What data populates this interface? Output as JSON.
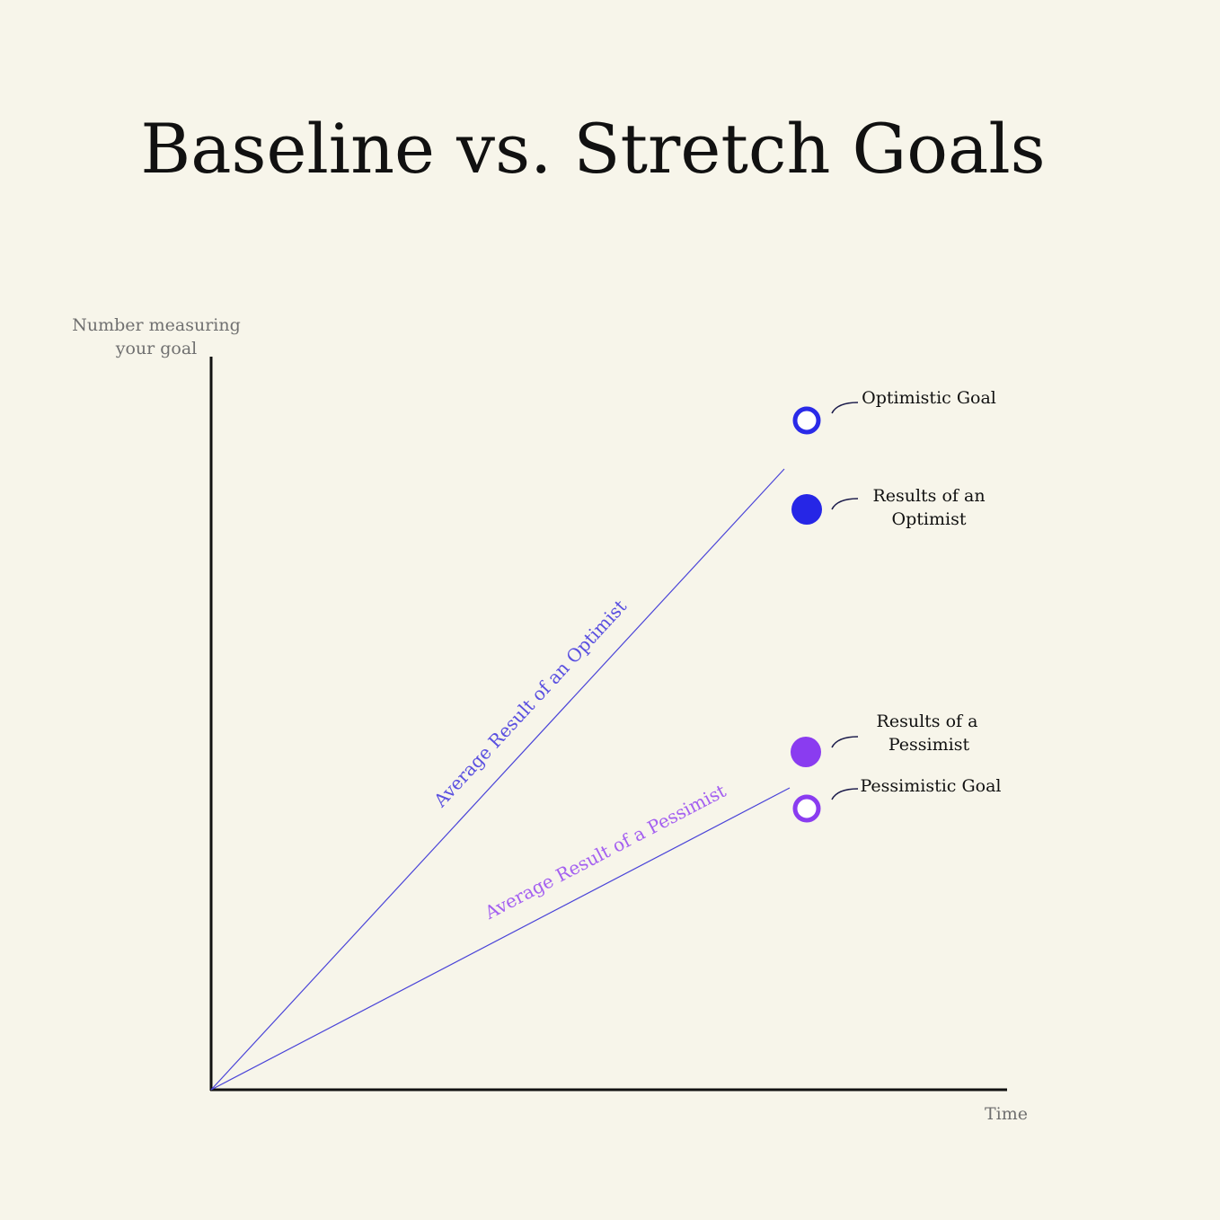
{
  "title": "Baseline vs. Stretch Goals",
  "y_axis_label": [
    "Number measuring",
    "your goal"
  ],
  "x_axis_label": "Time",
  "lines": [
    {
      "label": "Average Result of an Optimist"
    },
    {
      "label": "Average Result of a Pessimist"
    }
  ],
  "points": [
    {
      "label": [
        "Optimistic Goal"
      ]
    },
    {
      "label": [
        "Results of an",
        "Optimist"
      ]
    },
    {
      "label": [
        "Results of a",
        "Pessimist"
      ]
    },
    {
      "label": [
        "Pessimistic Goal"
      ]
    }
  ]
}
